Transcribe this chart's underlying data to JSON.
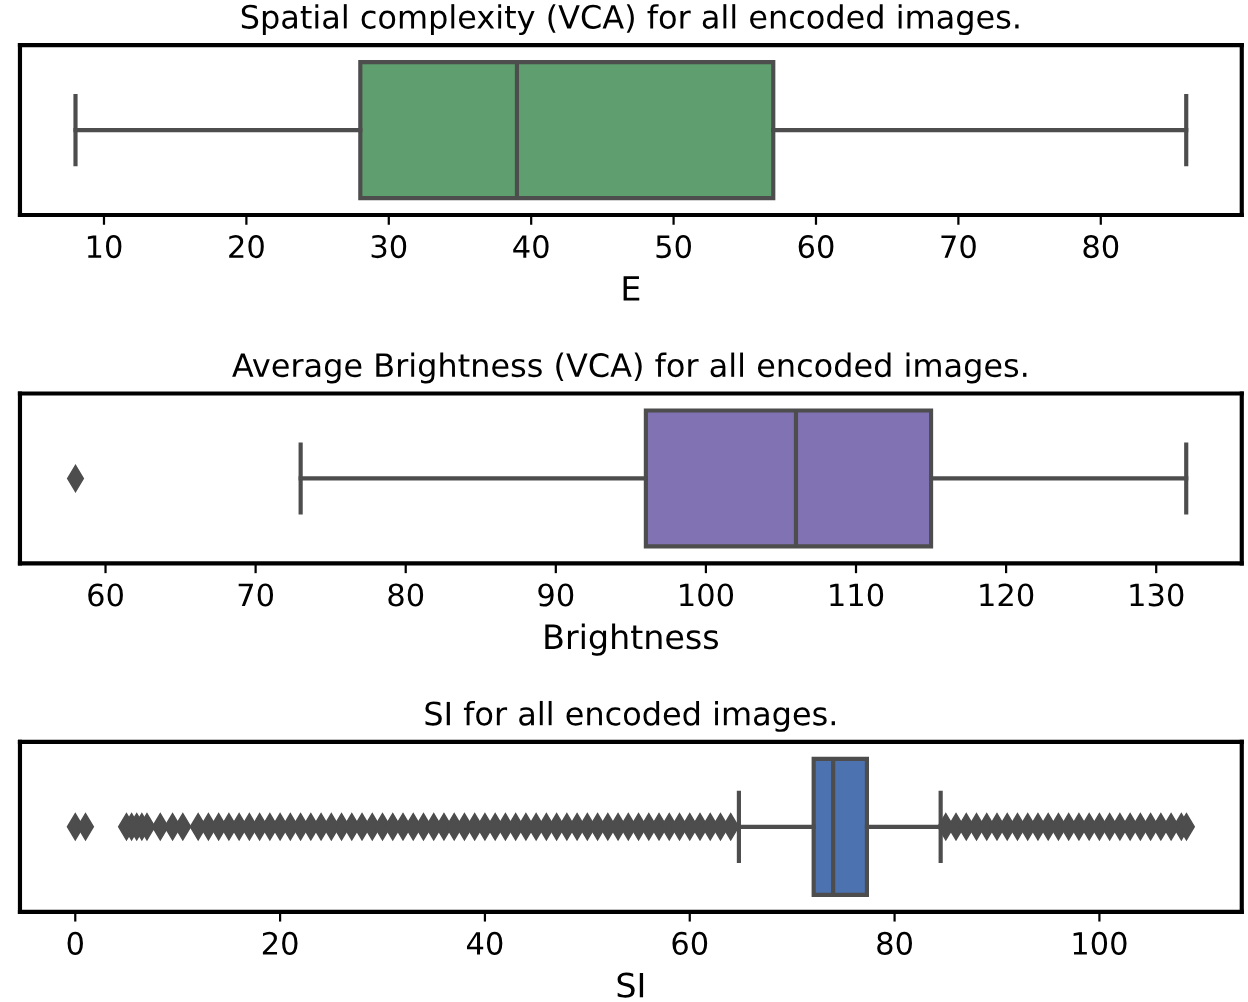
{
  "chart_data": [
    {
      "type": "box",
      "title": "Spatial complexity (VCA) for all encoded images.",
      "xlabel": "E",
      "orientation": "horizontal",
      "categories": [
        null
      ],
      "tick_labels": "x",
      "marker": "diamond",
      "xlim": [
        4.1,
        89.9
      ],
      "xticks": [
        10,
        20,
        30,
        40,
        50,
        60,
        70,
        80
      ],
      "series": [
        {
          "color": "#5f9e6e",
          "boxes": [
            {
              "low": 8,
              "q1": 28,
              "median": 39,
              "q3": 57,
              "high": 86
            }
          ]
        }
      ]
    },
    {
      "type": "box",
      "title": "Average Brightness (VCA) for all encoded images.",
      "xlabel": "Brightness",
      "orientation": "horizontal",
      "categories": [
        null
      ],
      "tick_labels": "x",
      "marker": "diamond",
      "xlim": [
        54.3,
        135.7
      ],
      "xticks": [
        60,
        70,
        80,
        90,
        100,
        110,
        120,
        130
      ],
      "series": [
        {
          "color": "#8172b3",
          "boxes": [
            {
              "low": 73,
              "q1": 96,
              "median": 106,
              "q3": 115,
              "high": 132,
              "outliers": [
                58
              ]
            }
          ]
        }
      ]
    },
    {
      "type": "box",
      "title": "SI for all encoded images.",
      "xlabel": "SI",
      "orientation": "horizontal",
      "categories": [
        null
      ],
      "tick_labels": "x",
      "marker": "diamond",
      "xlim": [
        -5.4,
        113.9
      ],
      "xticks": [
        0,
        20,
        40,
        60,
        80,
        100
      ],
      "series": [
        {
          "color": "#4c72b0",
          "boxes": [
            {
              "low": 64.8,
              "q1": 72.1,
              "median": 74,
              "q3": 77.3,
              "high": 84.5,
              "outliers": [
                0,
                1,
                5,
                5.5,
                6,
                6.5,
                7,
                8.3,
                9.5,
                10.5,
                12,
                13,
                14,
                15,
                16,
                17,
                18,
                19,
                20,
                21,
                22,
                23,
                24,
                25,
                26,
                27,
                28,
                29,
                30,
                31,
                32,
                33,
                34,
                35,
                36,
                37,
                38,
                39,
                40,
                41,
                42,
                43,
                44,
                45,
                46,
                47,
                48,
                49,
                50,
                51,
                52,
                53,
                54,
                55,
                56,
                57,
                58,
                59,
                60,
                61,
                62,
                63,
                64,
                85,
                86,
                87,
                88,
                89,
                90,
                91,
                92,
                93,
                94,
                95,
                96,
                97,
                98,
                99,
                100,
                101,
                102,
                103,
                104,
                105,
                106,
                107,
                108,
                108.5
              ]
            }
          ]
        }
      ]
    }
  ]
}
